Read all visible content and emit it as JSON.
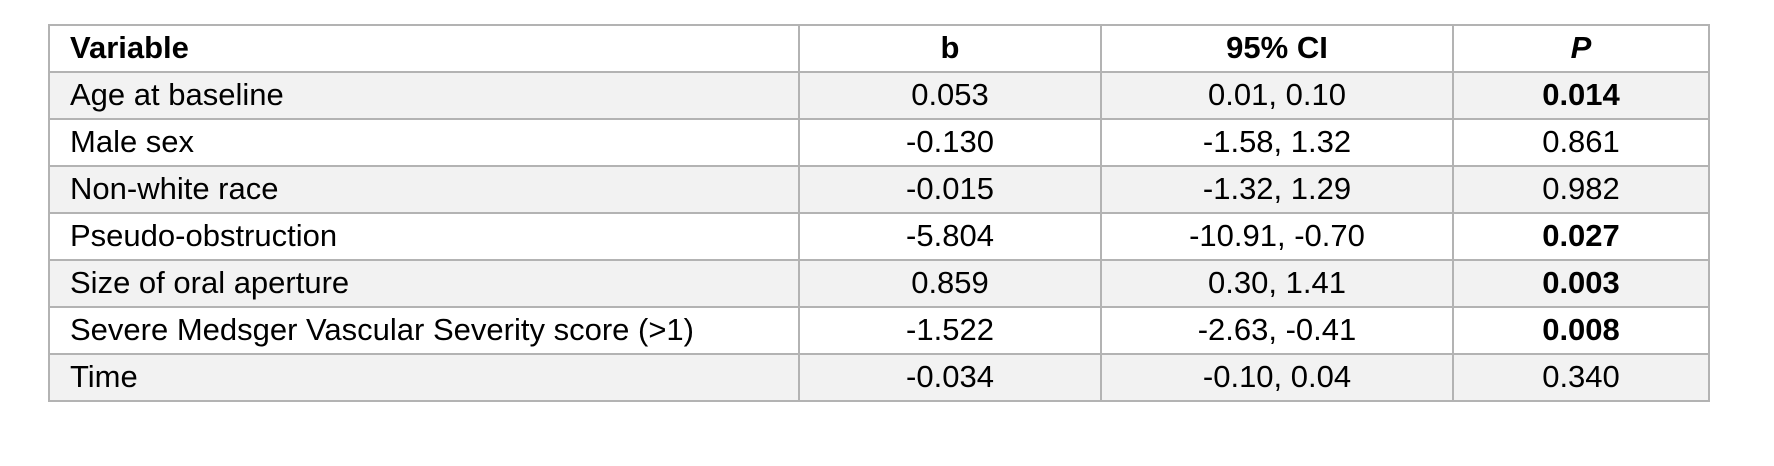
{
  "table": {
    "columns": [
      {
        "label": "Variable",
        "align": "left",
        "bold": true,
        "italic": false
      },
      {
        "label": "b",
        "align": "center",
        "bold": true,
        "italic": false
      },
      {
        "label": "95% CI",
        "align": "center",
        "bold": true,
        "italic": false
      },
      {
        "label": "P",
        "align": "center",
        "bold": true,
        "italic": true
      }
    ],
    "rows": [
      {
        "variable": "Age at baseline",
        "b": "0.053",
        "ci": "0.01, 0.10",
        "p": "0.014",
        "p_bold": true
      },
      {
        "variable": "Male sex",
        "b": "-0.130",
        "ci": "-1.58, 1.32",
        "p": "0.861",
        "p_bold": false
      },
      {
        "variable": "Non-white race",
        "b": "-0.015",
        "ci": "-1.32, 1.29",
        "p": "0.982",
        "p_bold": false
      },
      {
        "variable": "Pseudo-obstruction",
        "b": "-5.804",
        "ci": "-10.91, -0.70",
        "p": "0.027",
        "p_bold": true
      },
      {
        "variable": "Size of oral aperture",
        "b": "0.859",
        "ci": "0.30, 1.41",
        "p": "0.003",
        "p_bold": true
      },
      {
        "variable": "Severe Medsger Vascular Severity score (>1)",
        "b": "-1.522",
        "ci": "-2.63, -0.41",
        "p": "0.008",
        "p_bold": true
      },
      {
        "variable": "Time",
        "b": "-0.034",
        "ci": "-0.10, 0.04",
        "p": "0.340",
        "p_bold": false
      }
    ],
    "colors": {
      "stripe": "#f2f2f2",
      "border": "#b3b3b3",
      "text": "#000000",
      "background": "#ffffff"
    }
  }
}
